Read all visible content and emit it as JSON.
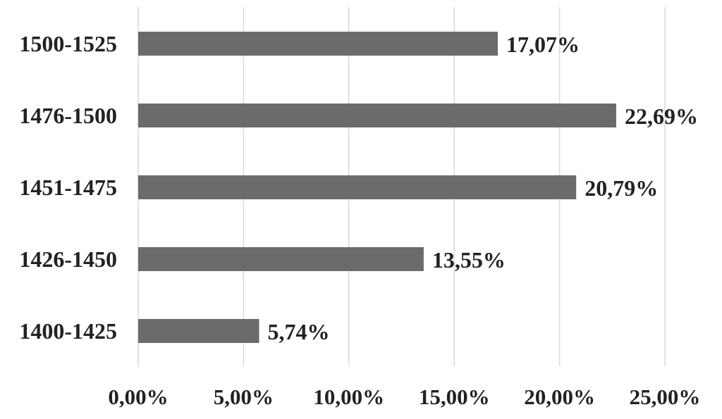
{
  "chart_data": {
    "type": "bar",
    "orientation": "horizontal",
    "categories": [
      "1500-1525",
      "1476-1500",
      "1451-1475",
      "1426-1450",
      "1400-1425"
    ],
    "values": [
      17.07,
      22.69,
      20.79,
      13.55,
      5.74
    ],
    "data_labels": [
      "17,07%",
      "22,69%",
      "20,79%",
      "13,55%",
      "5,74%"
    ],
    "x_ticks": [
      0,
      5,
      10,
      15,
      20,
      25
    ],
    "x_tick_labels": [
      "0,00%",
      "5,00%",
      "10,00%",
      "15,00%",
      "20,00%",
      "25,00%"
    ],
    "xlim": [
      0,
      25
    ],
    "grid": "vertical",
    "legend": "none",
    "title": "",
    "xlabel": "",
    "ylabel": "",
    "bar_color": "#6b6b6b",
    "grid_color": "#d9d9d9"
  }
}
